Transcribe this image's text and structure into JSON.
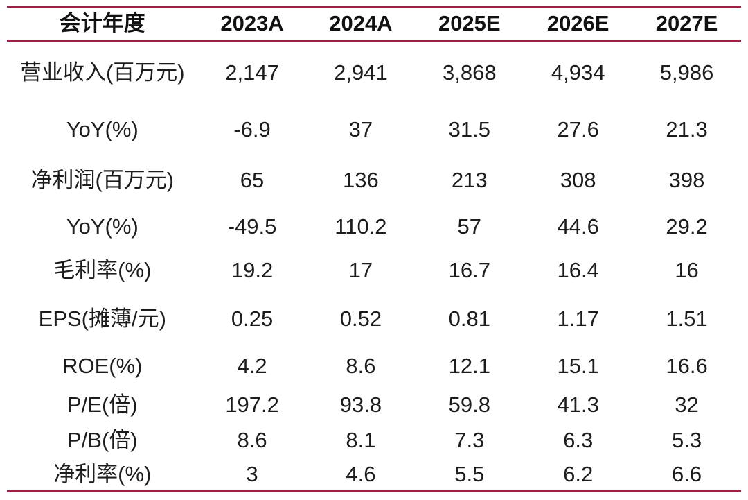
{
  "colors": {
    "rule": "#9E2143",
    "text": "#1D1D1D",
    "background": "#FFFFFF"
  },
  "table": {
    "header": {
      "label": "会计年度",
      "columns": [
        "2023A",
        "2024A",
        "2025E",
        "2026E",
        "2027E"
      ]
    },
    "rows": [
      {
        "label": "营业收入(百万元)",
        "values": [
          "2,147",
          "2,941",
          "3,868",
          "4,934",
          "5,986"
        ]
      },
      {
        "label": "YoY(%)",
        "values": [
          "-6.9",
          "37",
          "31.5",
          "27.6",
          "21.3"
        ]
      },
      {
        "label": "净利润(百万元)",
        "values": [
          "65",
          "136",
          "213",
          "308",
          "398"
        ]
      },
      {
        "label": "YoY(%)",
        "values": [
          "-49.5",
          "110.2",
          "57",
          "44.6",
          "29.2"
        ]
      },
      {
        "label": "毛利率(%)",
        "values": [
          "19.2",
          "17",
          "16.7",
          "16.4",
          "16"
        ]
      },
      {
        "label": "EPS(摊薄/元)",
        "values": [
          "0.25",
          "0.52",
          "0.81",
          "1.17",
          "1.51"
        ]
      },
      {
        "label": "ROE(%)",
        "values": [
          "4.2",
          "8.6",
          "12.1",
          "15.1",
          "16.6"
        ]
      },
      {
        "label": "P/E(倍)",
        "values": [
          "197.2",
          "93.8",
          "59.8",
          "41.3",
          "32"
        ]
      },
      {
        "label": "P/B(倍)",
        "values": [
          "8.6",
          "8.1",
          "7.3",
          "6.3",
          "5.3"
        ]
      },
      {
        "label": "净利率(%)",
        "values": [
          "3",
          "4.6",
          "5.5",
          "6.2",
          "6.6"
        ]
      }
    ]
  }
}
